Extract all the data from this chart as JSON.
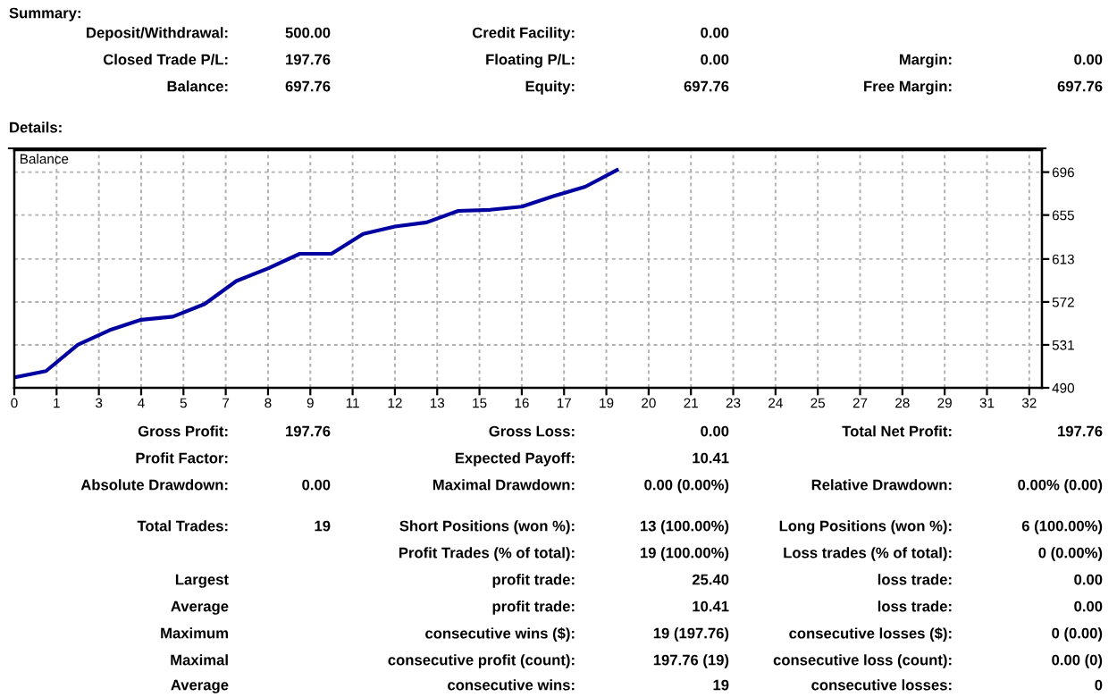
{
  "chart_data": {
    "type": "line",
    "title": "Balance",
    "x": [
      0,
      1,
      2,
      3,
      4,
      5,
      6,
      7,
      8,
      9,
      10,
      11,
      12,
      13,
      14,
      15,
      16,
      17,
      18,
      19
    ],
    "series": [
      {
        "color": "#0000a0",
        "values": [
          500,
          506,
          531,
          545,
          555,
          558,
          570,
          592,
          604,
          618,
          618,
          637,
          644,
          648,
          659,
          660,
          663,
          673,
          682,
          698
        ]
      }
    ],
    "xlim": [
      0,
      32.4
    ],
    "ylim": [
      490,
      717
    ],
    "xticks": [
      0,
      {
        "value": 1.3333,
        "label": "1"
      },
      {
        "value": 2.6667,
        "label": "3"
      },
      4,
      {
        "value": 5.3333,
        "label": "5"
      },
      {
        "value": 6.6667,
        "label": "7"
      },
      8,
      {
        "value": 9.3333,
        "label": "9"
      },
      {
        "value": 10.6667,
        "label": "11"
      },
      12,
      {
        "value": 13.3333,
        "label": "13"
      },
      {
        "value": 14.6667,
        "label": "15"
      },
      16,
      {
        "value": 17.3333,
        "label": "17"
      },
      {
        "value": 18.6667,
        "label": "19"
      },
      20,
      {
        "value": 21.3333,
        "label": "21"
      },
      {
        "value": 22.6667,
        "label": "23"
      },
      24,
      {
        "value": 25.3333,
        "label": "25"
      },
      {
        "value": 26.6667,
        "label": "27"
      },
      28,
      {
        "value": 29.3333,
        "label": "29"
      },
      {
        "value": 30.6667,
        "label": "31"
      },
      32
    ],
    "yticks": [
      490,
      531,
      572,
      613,
      655,
      696
    ],
    "grid": true,
    "line_style": "solid",
    "marker": "none",
    "legend": false,
    "annotations": [
      "Summary:",
      "Deposit/Withdrawal:",
      "500.00",
      "Credit Facility:",
      "0.00",
      "Closed Trade P/L:",
      "197.76",
      "Floating P/L:",
      "0.00",
      "Margin:",
      "0.00",
      "Balance:",
      "697.76",
      "Equity:",
      "697.76",
      "Free Margin:",
      "697.76",
      "Details:",
      "Gross Profit:",
      "197.76",
      "Gross Loss:",
      "0.00",
      "Total Net Profit:",
      "197.76",
      "Profit Factor:",
      "Expected Payoff:",
      "10.41",
      "Absolute Drawdown:",
      "0.00",
      "Maximal Drawdown:",
      "0.00 (0.00%)",
      "Relative Drawdown:",
      "0.00% (0.00)",
      "Total Trades:",
      "19",
      "Short Positions (won %):",
      "13 (100.00%)",
      "Long Positions (won %):",
      "6 (100.00%)",
      "Profit Trades (% of total):",
      "19 (100.00%)",
      "Loss trades (% of total):",
      "0 (0.00%)",
      "Largest",
      "profit trade:",
      "25.40",
      "loss trade:",
      "0.00",
      "Average",
      "profit trade:",
      "10.41",
      "loss trade:",
      "0.00",
      "Maximum",
      "consecutive wins ($):",
      "19 (197.76)",
      "consecutive losses ($):",
      "0 (0.00)",
      "Maximal",
      "consecutive profit (count):",
      "197.76 (19)",
      "consecutive loss (count):",
      "0.00 (0)",
      "Average",
      "consecutive wins:",
      "19",
      "consecutive losses:",
      "0"
    ]
  }
}
